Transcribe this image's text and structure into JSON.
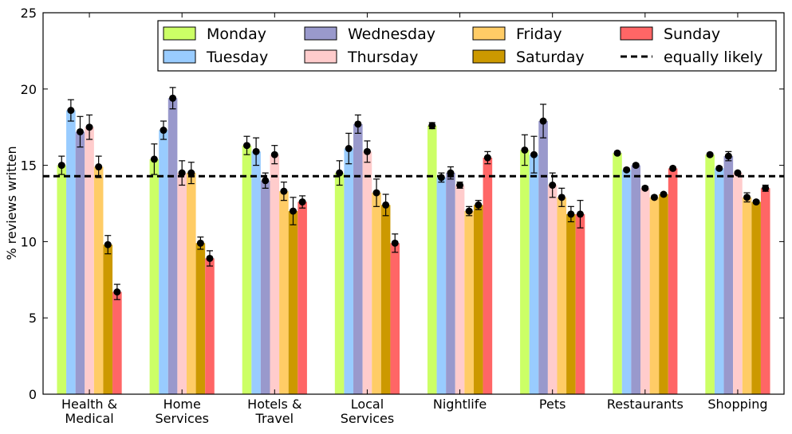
{
  "chart_data": {
    "type": "bar",
    "ylabel": "% reviews written",
    "xlabel": "",
    "ylim": [
      0,
      25
    ],
    "yticks": [
      0,
      5,
      10,
      15,
      20,
      25
    ],
    "categories": [
      [
        "Health &",
        "Medical"
      ],
      [
        "Home",
        "Services"
      ],
      [
        "Hotels &",
        "Travel"
      ],
      [
        "Local",
        "Services"
      ],
      [
        "Nightlife"
      ],
      [
        "Pets"
      ],
      [
        "Restaurants"
      ],
      [
        "Shopping"
      ]
    ],
    "series": [
      {
        "name": "Monday",
        "color": "#ccff66",
        "values": [
          15.0,
          15.4,
          16.3,
          14.5,
          17.6,
          16.0,
          15.8,
          15.7
        ],
        "errors": [
          0.6,
          1.0,
          0.6,
          0.8,
          0.2,
          1.0,
          0.1,
          0.1
        ]
      },
      {
        "name": "Tuesday",
        "color": "#99ccff",
        "values": [
          18.6,
          17.3,
          15.9,
          16.1,
          14.2,
          15.7,
          14.7,
          14.8
        ],
        "errors": [
          0.7,
          0.6,
          0.9,
          1.0,
          0.3,
          1.2,
          0.1,
          0.1
        ]
      },
      {
        "name": "Wednesday",
        "color": "#9999cc",
        "values": [
          17.2,
          19.4,
          14.0,
          17.7,
          14.5,
          17.9,
          15.0,
          15.6
        ],
        "errors": [
          1.0,
          0.7,
          0.5,
          0.6,
          0.4,
          1.1,
          0.1,
          0.3
        ]
      },
      {
        "name": "Thursday",
        "color": "#ffcccc",
        "values": [
          17.5,
          14.5,
          15.7,
          15.9,
          13.7,
          13.7,
          13.5,
          14.5
        ],
        "errors": [
          0.8,
          0.8,
          0.6,
          0.7,
          0.2,
          0.8,
          0.1,
          0.1
        ]
      },
      {
        "name": "Friday",
        "color": "#ffcc66",
        "values": [
          14.9,
          14.5,
          13.3,
          13.2,
          12.0,
          12.9,
          12.9,
          12.9
        ],
        "errors": [
          0.7,
          0.7,
          0.6,
          0.9,
          0.3,
          0.6,
          0.1,
          0.3
        ]
      },
      {
        "name": "Saturday",
        "color": "#cc9900",
        "values": [
          9.8,
          9.9,
          12.0,
          12.4,
          12.4,
          11.8,
          13.1,
          12.6
        ],
        "errors": [
          0.6,
          0.4,
          0.9,
          0.7,
          0.3,
          0.5,
          0.1,
          0.1
        ]
      },
      {
        "name": "Sunday",
        "color": "#ff6666",
        "values": [
          6.7,
          8.9,
          12.6,
          9.9,
          15.5,
          11.8,
          14.8,
          13.5
        ],
        "errors": [
          0.5,
          0.5,
          0.4,
          0.6,
          0.4,
          0.9,
          0.1,
          0.2
        ]
      }
    ],
    "reference_line": {
      "name": "equally likely",
      "value": 14.29,
      "style": "dashed"
    },
    "legend": {
      "placement": "top-right",
      "columns": 4
    },
    "grid": false
  }
}
